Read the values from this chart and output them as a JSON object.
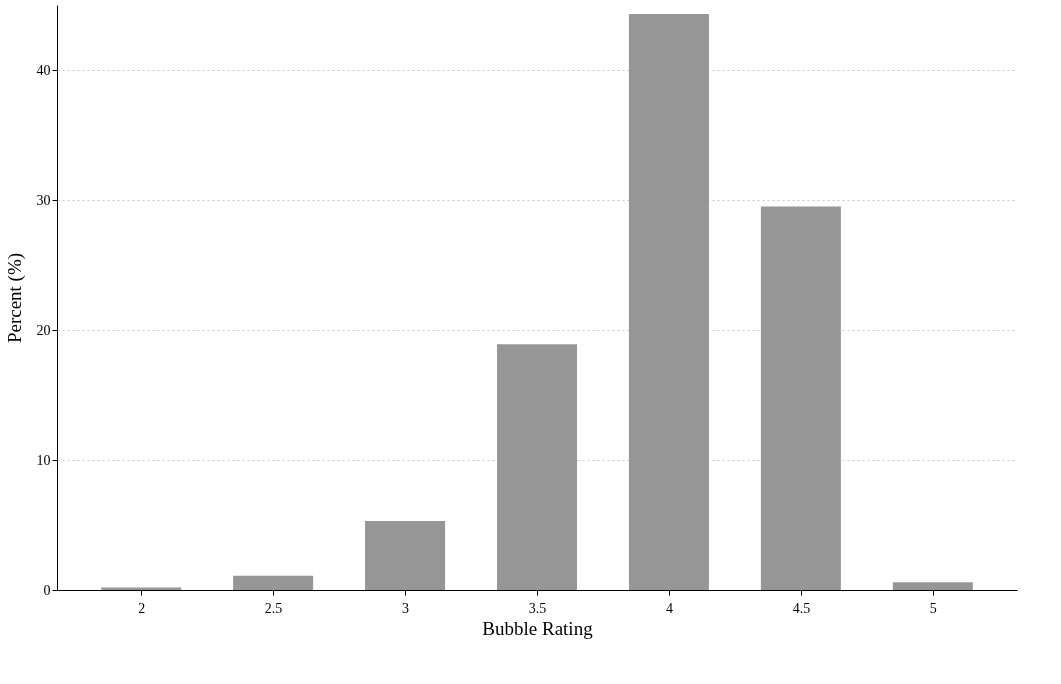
{
  "chart_data": {
    "type": "bar",
    "xlabel": "Bubble Rating",
    "ylabel": "Percent (%)",
    "categories": [
      "2",
      "2.5",
      "3",
      "3.5",
      "4",
      "4.5",
      "5"
    ],
    "values": [
      0.2,
      1.1,
      5.3,
      18.9,
      44.3,
      29.5,
      0.6
    ],
    "color": "#969696",
    "ylim": [
      0,
      45
    ],
    "yticks": [
      0,
      10,
      20,
      30,
      40
    ],
    "grid": "y"
  }
}
